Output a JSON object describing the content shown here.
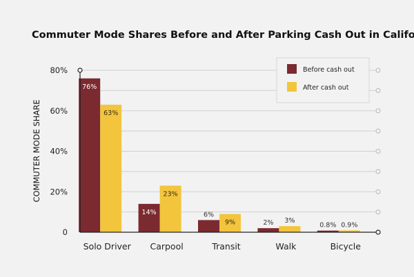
{
  "chart_data": {
    "type": "bar",
    "title": "Commuter Mode Shares Before and After Parking Cash Out in California",
    "xlabel": "",
    "ylabel": "COMMUTER MODE SHARE",
    "categories": [
      "Solo Driver",
      "Carpool",
      "Transit",
      "Walk",
      "Bicycle"
    ],
    "series": [
      {
        "name": "Before cash out",
        "values": [
          76,
          14,
          6,
          2,
          0.8
        ],
        "labels": [
          "76%",
          "14%",
          "6%",
          "2%",
          "0.8%"
        ],
        "color": "#7b2a30"
      },
      {
        "name": "After cash out",
        "values": [
          63,
          23,
          9,
          3,
          0.9
        ],
        "labels": [
          "63%",
          "23%",
          "9%",
          "3%",
          "0.9%"
        ],
        "color": "#f2c53d"
      }
    ],
    "ylim": [
      0,
      80
    ],
    "yticks": [
      0,
      20,
      40,
      60,
      80
    ],
    "ytick_labels": [
      "0",
      "20%",
      "40%",
      "60%",
      "80%"
    ],
    "grid": true,
    "legend_position": "top-right",
    "background": "#f2f2f2"
  }
}
